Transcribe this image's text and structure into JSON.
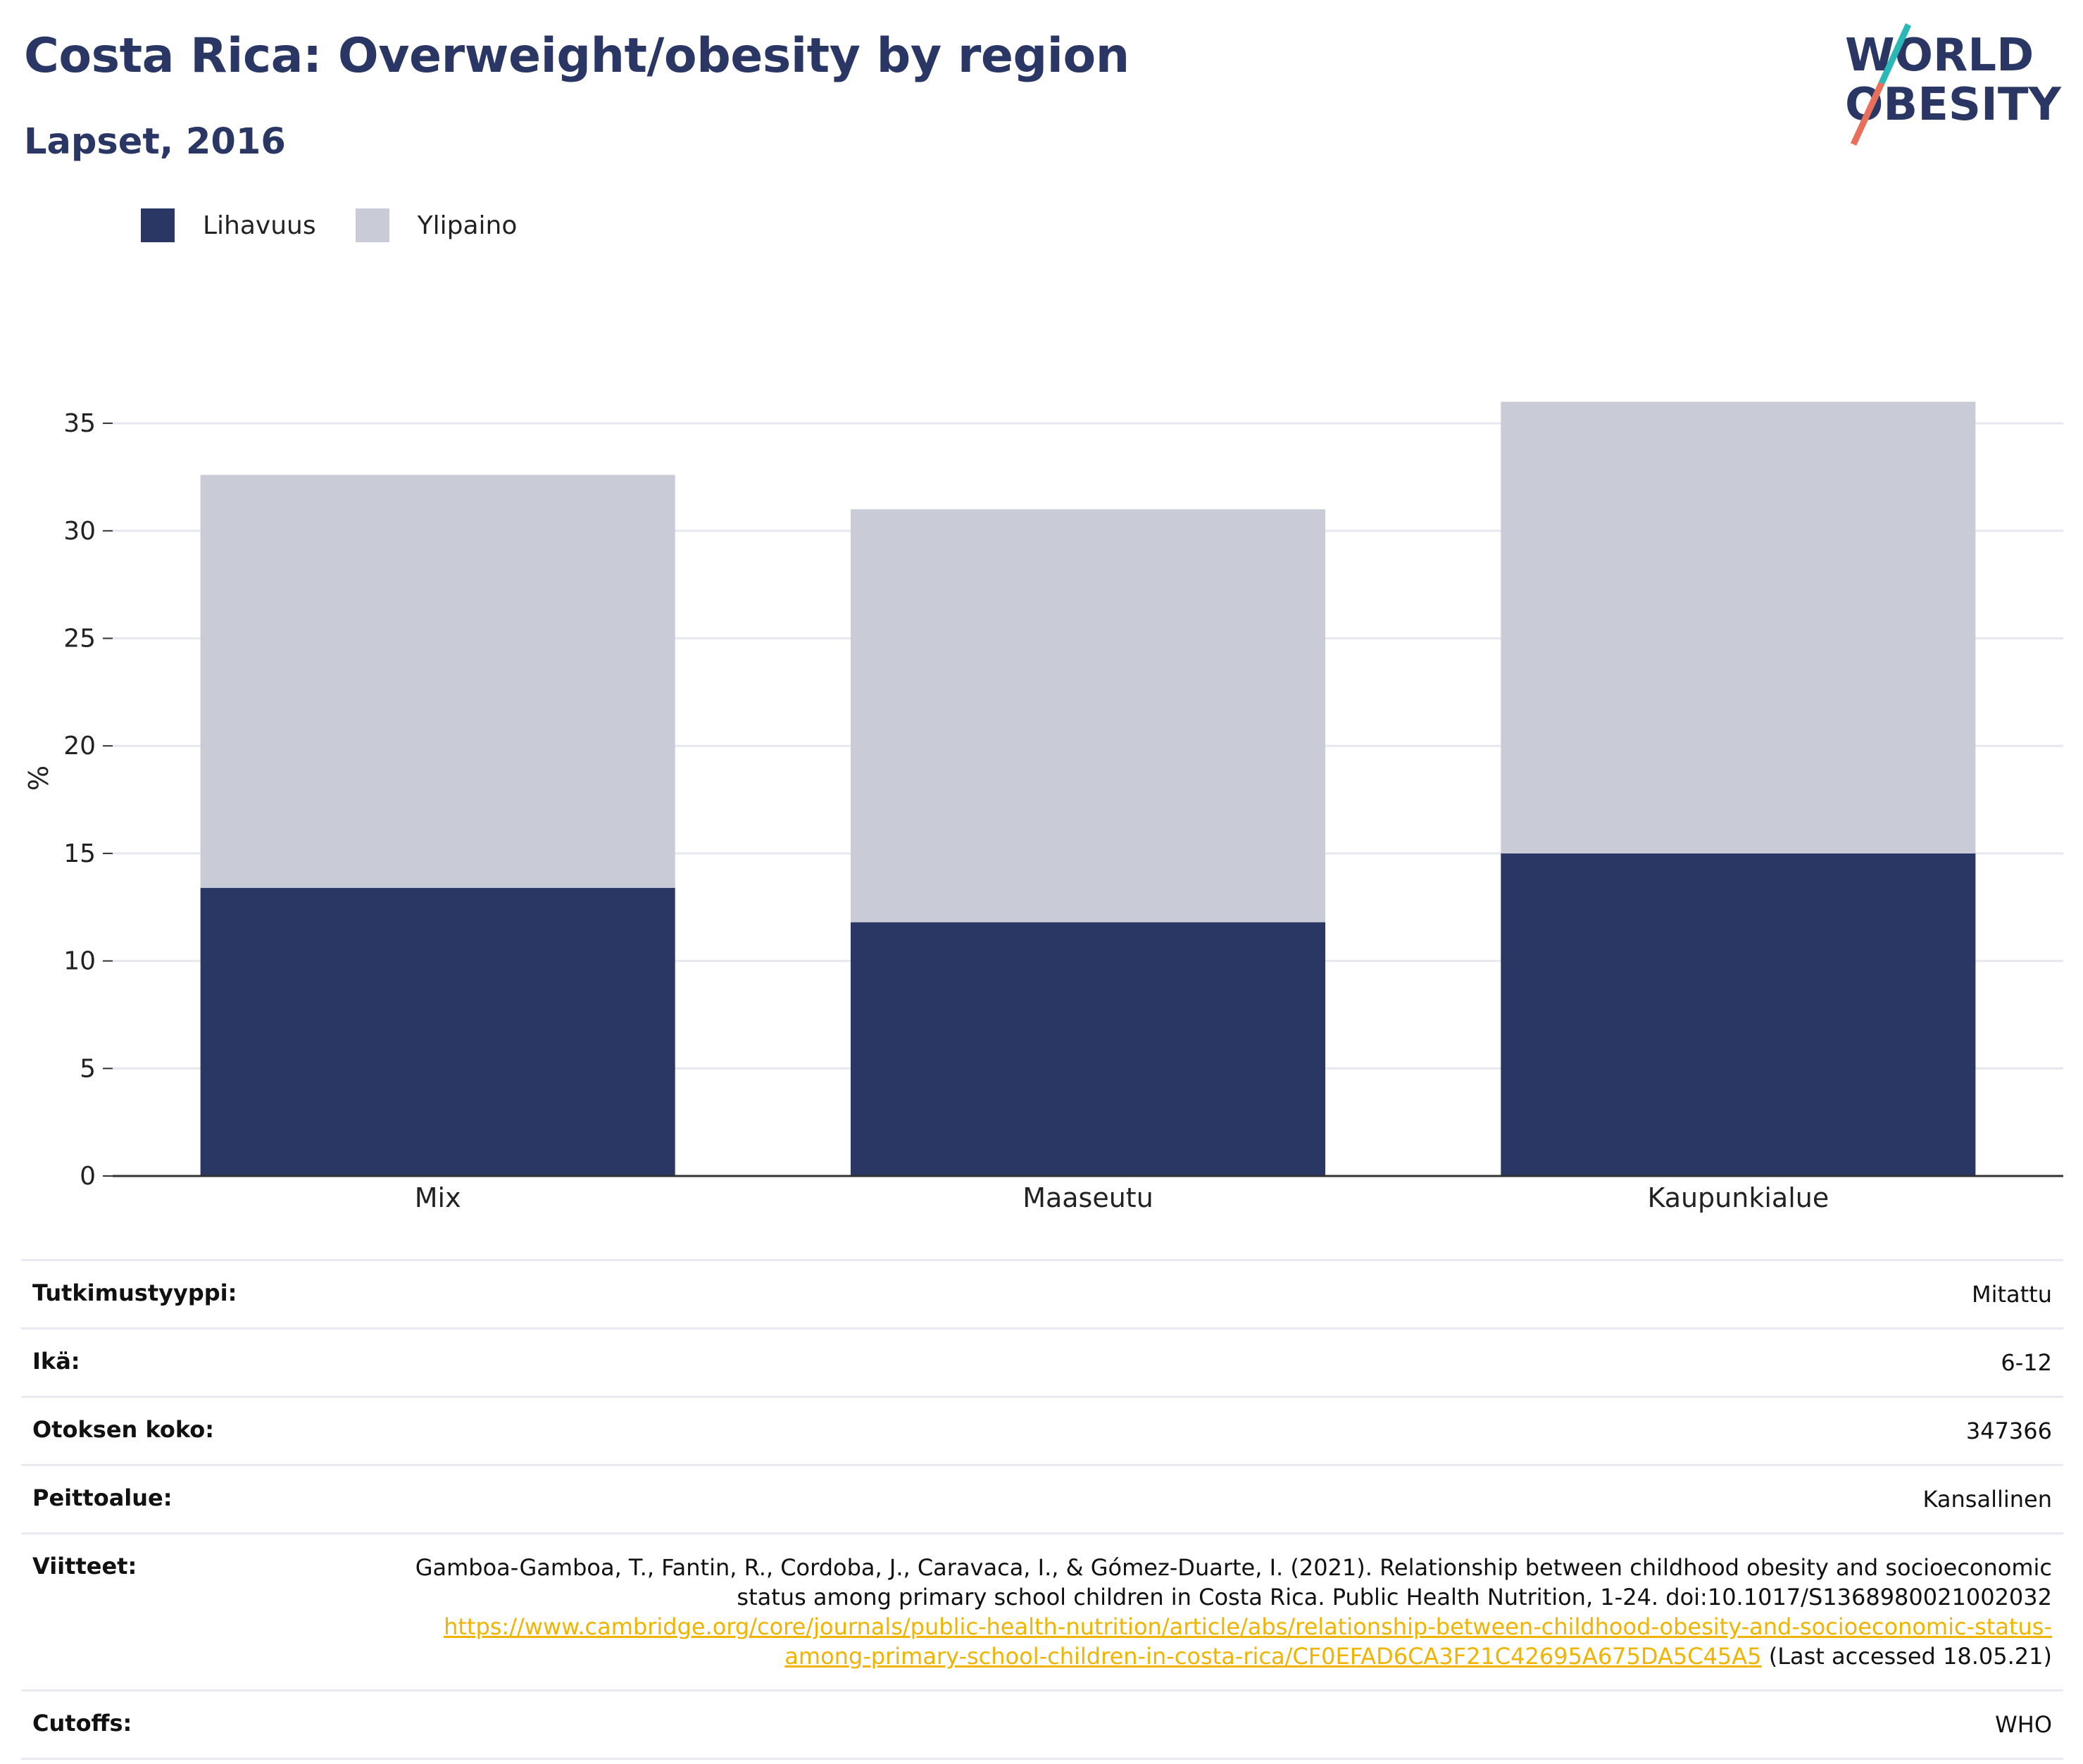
{
  "header": {
    "title": "Costa Rica: Overweight/obesity by region",
    "subtitle": "Lapset, 2016",
    "logo_line1": "WORLD",
    "logo_line2": "OBESITY"
  },
  "legend": [
    {
      "label": "Lihavuus",
      "color": "#2a3764"
    },
    {
      "label": "Ylipaino",
      "color": "#c9cbd6"
    }
  ],
  "chart_data": {
    "type": "bar",
    "stacked": true,
    "categories": [
      "Mix",
      "Maaseutu",
      "Kaupunkialue"
    ],
    "series": [
      {
        "name": "Lihavuus",
        "values": [
          13.4,
          11.8,
          15.0
        ],
        "color": "#2a3764"
      },
      {
        "name": "Ylipaino",
        "values": [
          19.2,
          19.2,
          21.0
        ],
        "color": "#c9cbd6"
      }
    ],
    "ylabel": "%",
    "ylim": [
      0,
      37
    ],
    "yticks": [
      0,
      5,
      10,
      15,
      20,
      25,
      30,
      35
    ],
    "grid": true,
    "legend_position": "top-left"
  },
  "meta": [
    {
      "key": "Tutkimustyyppi:",
      "value": "Mitattu"
    },
    {
      "key": "Ikä:",
      "value": "6-12"
    },
    {
      "key": "Otoksen koko:",
      "value": "347366"
    },
    {
      "key": "Peittoalue:",
      "value": "Kansallinen"
    },
    {
      "key": "Viitteet:",
      "value": "Gamboa-Gamboa, T., Fantin, R., Cordoba, J., Caravaca, I., & Gómez-Duarte, I. (2021). Relationship between childhood obesity and socioeconomic status among primary school children in Costa Rica. Public Health Nutrition, 1-24. doi:10.1017/S1368980021002032",
      "link": "https://www.cambridge.org/core/journals/public-health-nutrition/article/abs/relationship-between-childhood-obesity-and-socioeconomic-status-among-primary-school-children-in-costa-rica/CF0EFAD6CA3F21C42695A675DA5C45A5",
      "suffix": "(Last accessed 18.05.21)"
    },
    {
      "key": "Cutoffs:",
      "value": "WHO"
    }
  ]
}
